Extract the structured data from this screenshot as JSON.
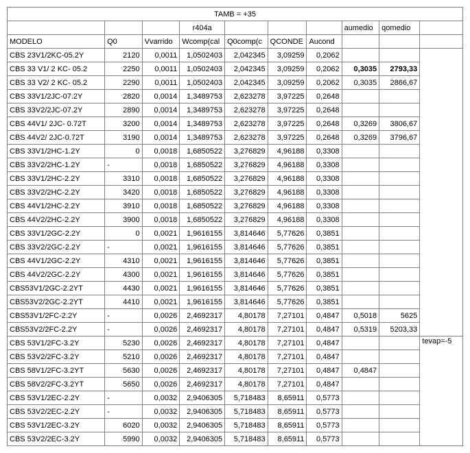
{
  "title": "TAMB = +35",
  "sub": "r404a",
  "side_note": "tevap=-5",
  "headers": {
    "modelo": "MODELO",
    "q0": "Q0",
    "vvarrido": "Vvarrido",
    "wcomp": "Wcomp(cal",
    "q0comp": "Q0comp(c",
    "qconde": "QCONDE",
    "aucond": "Aucond",
    "aumedio": "aumedio",
    "qomedio": "qomedio"
  },
  "rows": [
    {
      "m": "CBS 23V1/2KC-05.2Y",
      "q0": "2120",
      "vv": "0,0011",
      "wc": "1,0502403",
      "q0c": "2,042345",
      "qd": "3,09259",
      "au": "0,2062",
      "am": "",
      "qm": ""
    },
    {
      "m": "CBS 33 V1/ 2 KC- 05.2",
      "q0": "2250",
      "vv": "0,0011",
      "wc": "1,0502403",
      "q0c": "2,042345",
      "qd": "3,09259",
      "au": "0,2062",
      "am": "0,3035",
      "qm": "2793,33",
      "bold": true
    },
    {
      "m": "CBS 33 V2/ 2 KC- 05.2",
      "q0": "2290",
      "vv": "0,0011",
      "wc": "1,0502403",
      "q0c": "2,042345",
      "qd": "3,09259",
      "au": "0,2062",
      "am": "0,3035",
      "qm": "2866,67"
    },
    {
      "m": "CBS 33V1/2JC-07.2Y",
      "q0": "2820",
      "vv": "0,0014",
      "wc": "1,3489753",
      "q0c": "2,623278",
      "qd": "3,97225",
      "au": "0,2648",
      "am": "",
      "qm": ""
    },
    {
      "m": "CBS 33V2/2JC-07.2Y",
      "q0": "2890",
      "vv": "0,0014",
      "wc": "1,3489753",
      "q0c": "2,623278",
      "qd": "3,97225",
      "au": "0,2648",
      "am": "",
      "qm": ""
    },
    {
      "m": "CBS 44V1/ 2JC- 0.72T",
      "q0": "3200",
      "vv": "0,0014",
      "wc": "1,3489753",
      "q0c": "2,623278",
      "qd": "3,97225",
      "au": "0,2648",
      "am": "0,3269",
      "qm": "3806,67"
    },
    {
      "m": "CBS 44V2/ 2JC-0.72T",
      "q0": "3190",
      "vv": "0,0014",
      "wc": "1,3489753",
      "q0c": "2,623278",
      "qd": "3,97225",
      "au": "0,2648",
      "am": "0,3269",
      "qm": "3796,67"
    },
    {
      "m": "CBS 33V1/2HC-1.2Y",
      "q0": "0",
      "vv": "0,0018",
      "wc": "1,6850522",
      "q0c": "3,276829",
      "qd": "4,96188",
      "au": "0,3308",
      "am": "",
      "qm": ""
    },
    {
      "m": "CBS 33V2/2HC-1.2Y",
      "q0": "-",
      "vv": "0,0018",
      "wc": "1,6850522",
      "q0c": "3,276829",
      "qd": "4,96188",
      "au": "0,3308",
      "am": "",
      "qm": "",
      "q0left": true
    },
    {
      "m": "CBS 33V1/2HC-2.2Y",
      "q0": "3310",
      "vv": "0,0018",
      "wc": "1,6850522",
      "q0c": "3,276829",
      "qd": "4,96188",
      "au": "0,3308",
      "am": "",
      "qm": ""
    },
    {
      "m": "CBS 33V2/2HC-2.2Y",
      "q0": "3420",
      "vv": "0,0018",
      "wc": "1,6850522",
      "q0c": "3,276829",
      "qd": "4,96188",
      "au": "0,3308",
      "am": "",
      "qm": ""
    },
    {
      "m": "CBS 44V1/2HC-2.2Y",
      "q0": "3910",
      "vv": "0,0018",
      "wc": "1,6850522",
      "q0c": "3,276829",
      "qd": "4,96188",
      "au": "0,3308",
      "am": "",
      "qm": ""
    },
    {
      "m": "CBS 44V2/2HC-2.2Y",
      "q0": "3900",
      "vv": "0,0018",
      "wc": "1,6850522",
      "q0c": "3,276829",
      "qd": "4,96188",
      "au": "0,3308",
      "am": "",
      "qm": ""
    },
    {
      "m": "CBS 33V1/2GC-2.2Y",
      "q0": "0",
      "vv": "0,0021",
      "wc": "1,9616155",
      "q0c": "3,814646",
      "qd": "5,77626",
      "au": "0,3851",
      "am": "",
      "qm": ""
    },
    {
      "m": "CBS 33V2/2GC-2.2Y",
      "q0": "-",
      "vv": "0,0021",
      "wc": "1,9616155",
      "q0c": "3,814646",
      "qd": "5,77626",
      "au": "0,3851",
      "am": "",
      "qm": "",
      "q0left": true
    },
    {
      "m": "CBS 44V1/2GC-2.2Y",
      "q0": "4310",
      "vv": "0,0021",
      "wc": "1,9616155",
      "q0c": "3,814646",
      "qd": "5,77626",
      "au": "0,3851",
      "am": "",
      "qm": ""
    },
    {
      "m": "CBS 44V2/2GC-2.2Y",
      "q0": "4300",
      "vv": "0,0021",
      "wc": "1,9616155",
      "q0c": "3,814646",
      "qd": "5,77626",
      "au": "0,3851",
      "am": "",
      "qm": ""
    },
    {
      "m": "CBS53V1/2GC-2.2YT",
      "q0": "4430",
      "vv": "0,0021",
      "wc": "1,9616155",
      "q0c": "3,814646",
      "qd": "5,77626",
      "au": "0,3851",
      "am": "",
      "qm": ""
    },
    {
      "m": "CBS53V2/2GC-2.2YT",
      "q0": "4410",
      "vv": "0,0021",
      "wc": "1,9616155",
      "q0c": "3,814646",
      "qd": "5,77626",
      "au": "0,3851",
      "am": "",
      "qm": ""
    },
    {
      "m": "CBS53V1/2FC-2.2Y",
      "q0": "-",
      "vv": "0,0026",
      "wc": "2,4692317",
      "q0c": "4,80178",
      "qd": "7,27101",
      "au": "0,4847",
      "am": "0,5018",
      "qm": "5625",
      "q0left": true
    },
    {
      "m": "CBS53V2/2FC-2.2Y",
      "q0": "-",
      "vv": "0,0026",
      "wc": "2,4692317",
      "q0c": "4,80178",
      "qd": "7,27101",
      "au": "0,4847",
      "am": "0,5319",
      "qm": "5203,33",
      "q0left": true
    },
    {
      "m": "CBS 53V1/2FC-3.2Y",
      "q0": "5230",
      "vv": "0,0026",
      "wc": "2,4692317",
      "q0c": "4,80178",
      "qd": "7,27101",
      "au": "0,4847",
      "am": "",
      "qm": ""
    },
    {
      "m": "CBS 53V2/2FC-3.2Y",
      "q0": "5210",
      "vv": "0,0026",
      "wc": "2,4692317",
      "q0c": "4,80178",
      "qd": "7,27101",
      "au": "0,4847",
      "am": "",
      "qm": ""
    },
    {
      "m": "CBS 58V1/2FC-3.2YT",
      "q0": "5630",
      "vv": "0,0026",
      "wc": "2,4692317",
      "q0c": "4,80178",
      "qd": "7,27101",
      "au": "0,4847",
      "am": "0,4847",
      "qm": ""
    },
    {
      "m": "CBS 58V2/2FC-3.2YT",
      "q0": "5650",
      "vv": "0,0026",
      "wc": "2,4692317",
      "q0c": "4,80178",
      "qd": "7,27101",
      "au": "0,4847",
      "am": "",
      "qm": ""
    },
    {
      "m": "CBS 53V1/2EC-2.2Y",
      "q0": "-",
      "vv": "0,0032",
      "wc": "2,9406305",
      "q0c": "5,718483",
      "qd": "8,65911",
      "au": "0,5773",
      "am": "",
      "qm": "",
      "q0left": true
    },
    {
      "m": "CBS 53V2/2EC-2.2Y",
      "q0": "-",
      "vv": "0,0032",
      "wc": "2,9406305",
      "q0c": "5,718483",
      "qd": "8,65911",
      "au": "0,5773",
      "am": "",
      "qm": "",
      "q0left": true
    },
    {
      "m": "CBS 53V1/2EC-3.2Y",
      "q0": "6020",
      "vv": "0,0032",
      "wc": "2,9406305",
      "q0c": "5,718483",
      "qd": "8,65911",
      "au": "0,5773",
      "am": "",
      "qm": ""
    },
    {
      "m": "CBS 53V2/2EC-3.2Y",
      "q0": "5990",
      "vv": "0,0032",
      "wc": "2,9406305",
      "q0c": "5,718483",
      "qd": "8,65911",
      "au": "0,5773",
      "am": "",
      "qm": ""
    }
  ]
}
